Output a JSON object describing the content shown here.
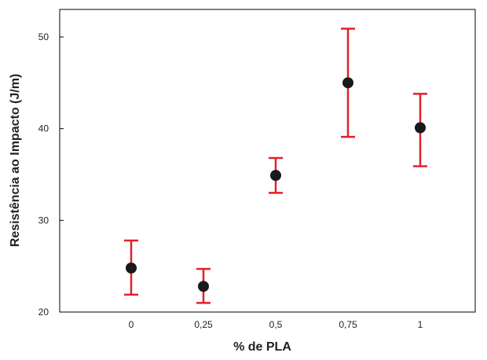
{
  "chart_data": {
    "type": "scatter",
    "xlabel": "% de PLA",
    "ylabel": "Resistência ao Impacto (J/m)",
    "categories": [
      "0",
      "0,25",
      "0,5",
      "0,75",
      "1"
    ],
    "series": [
      {
        "values": [
          24.8,
          22.8,
          34.9,
          45.0,
          40.1
        ],
        "error_low": [
          21.9,
          21.0,
          33.0,
          39.1,
          35.9
        ],
        "error_high": [
          27.8,
          24.7,
          36.8,
          50.9,
          43.8
        ]
      }
    ],
    "ylim": [
      20,
      53
    ],
    "yticks": [
      20,
      30,
      40,
      50
    ],
    "grid": false,
    "legend": "none",
    "colors": {
      "marker": "#1a1a1a",
      "error_bar": "#e3202a",
      "axis": "#000000"
    }
  }
}
